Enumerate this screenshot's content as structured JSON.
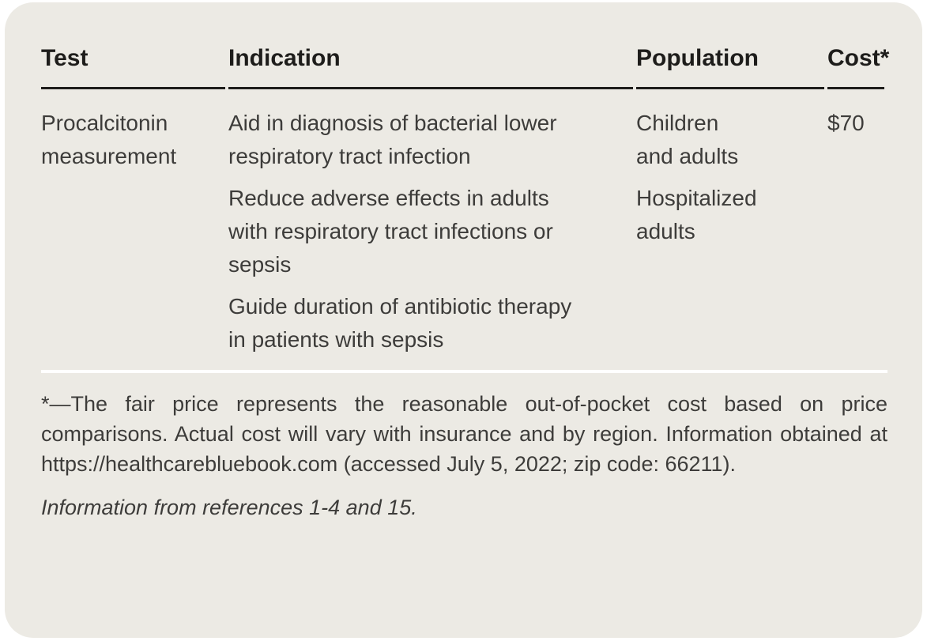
{
  "table": {
    "columns": [
      "Test",
      "Indication",
      "Population",
      "Cost*"
    ],
    "rows": [
      {
        "test": "Procalcitonin measurement",
        "indications": [
          "Aid in diagnosis of bacterial lower respiratory tract infection",
          "Reduce adverse effects in adults with respiratory tract infections or sepsis",
          "Guide duration of antibiotic therapy in patients with sepsis"
        ],
        "populations": [
          "Children and adults",
          "Hospitalized adults"
        ],
        "cost": "$70"
      }
    ]
  },
  "notes": {
    "footnote": "*—The fair price represents the reasonable out-of-pocket cost based on price comparisons. Actual cost will vary with insurance and by region. Information obtained at https://healthcarebluebook.com (accessed July 5, 2022; zip code: 66211).",
    "source": "Information from references 1-4 and 15."
  },
  "colors": {
    "page_bg": "#ffffff",
    "card_bg": "#eceae4",
    "heading_text": "#1e1d1b",
    "body_text": "#3d3c3a",
    "header_rule": "#1e1d1b",
    "footnote_divider": "#ffffff"
  }
}
